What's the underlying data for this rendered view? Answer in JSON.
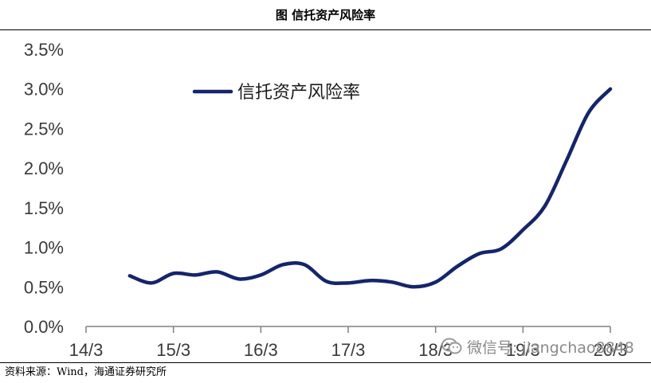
{
  "figure_title": "图  信托资产风险率",
  "source_note": "资料来源：Wind，海通证券研究所",
  "watermark": {
    "wechat_text": "微信号: jiangchao8848"
  },
  "chart_data": {
    "type": "line",
    "title": "",
    "xlabel": "",
    "ylabel": "",
    "x_ticks": [
      "14/3",
      "15/3",
      "16/3",
      "17/3",
      "18/3",
      "19/3",
      "20/3"
    ],
    "y_ticks": [
      "0.0%",
      "0.5%",
      "1.0%",
      "1.5%",
      "2.0%",
      "2.5%",
      "3.0%",
      "3.5%"
    ],
    "ylim": [
      0,
      3.5
    ],
    "y_unit": "%",
    "legend_position": "top-left",
    "grid": false,
    "colors": {
      "series": "#14256b",
      "axis": "#808080"
    },
    "series": [
      {
        "name": "信托资产风险率",
        "x": [
          "14/9",
          "14/12",
          "15/3",
          "15/6",
          "15/9",
          "15/12",
          "16/3",
          "16/6",
          "16/9",
          "16/12",
          "17/3",
          "17/6",
          "17/9",
          "17/12",
          "18/3",
          "18/6",
          "18/9",
          "18/12",
          "19/3",
          "19/6",
          "19/9",
          "19/12",
          "20/3"
        ],
        "values": [
          0.64,
          0.55,
          0.67,
          0.65,
          0.69,
          0.6,
          0.65,
          0.78,
          0.78,
          0.57,
          0.55,
          0.58,
          0.56,
          0.5,
          0.56,
          0.76,
          0.92,
          0.98,
          1.22,
          1.52,
          2.1,
          2.7,
          3.0
        ]
      }
    ]
  }
}
